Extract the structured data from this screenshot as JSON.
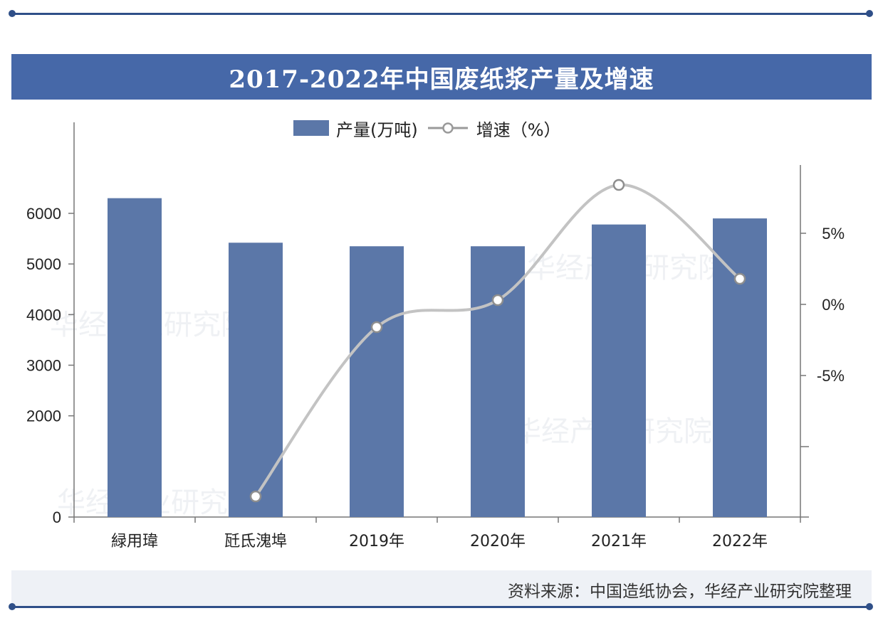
{
  "title": "2017-2022年中国废纸浆产量及增速",
  "legend": {
    "bar_label": "产量(万吨)",
    "line_label": "增速（%）"
  },
  "source": "资料来源：中国造纸协会，华经产业研究院整理",
  "watermark": "华经产业研究院",
  "colors": {
    "frame": "#2f4f88",
    "title_bg": "#4668a8",
    "bar": "#5b77a8",
    "line": "#c3c3c3"
  },
  "chart_data": {
    "type": "bar",
    "title": "2017-2022年中国废纸浆产量及增速",
    "categories": [
      "緑用瑋",
      "瓩氐溾埠",
      "2019年",
      "2020年",
      "2021年",
      "2022年"
    ],
    "series": [
      {
        "name": "产量(万吨)",
        "type": "bar",
        "axis": "left",
        "values": [
          6300,
          5420,
          5350,
          5350,
          5780,
          5900
        ]
      },
      {
        "name": "增速（%）",
        "type": "line",
        "axis": "right",
        "smooth": true,
        "marker": "hollow-circle",
        "values": [
          null,
          -13.5,
          -1.6,
          0.3,
          8.4,
          1.8
        ]
      }
    ],
    "left_axis": {
      "ticks": [
        0,
        2000,
        3000,
        4000,
        5000,
        6000
      ],
      "ylim": [
        0,
        6300
      ]
    },
    "right_axis": {
      "ticks": [
        "5%",
        "0%",
        "-5%"
      ],
      "ylim": [
        -15,
        10
      ]
    },
    "grid": false,
    "legend_position": "top"
  }
}
